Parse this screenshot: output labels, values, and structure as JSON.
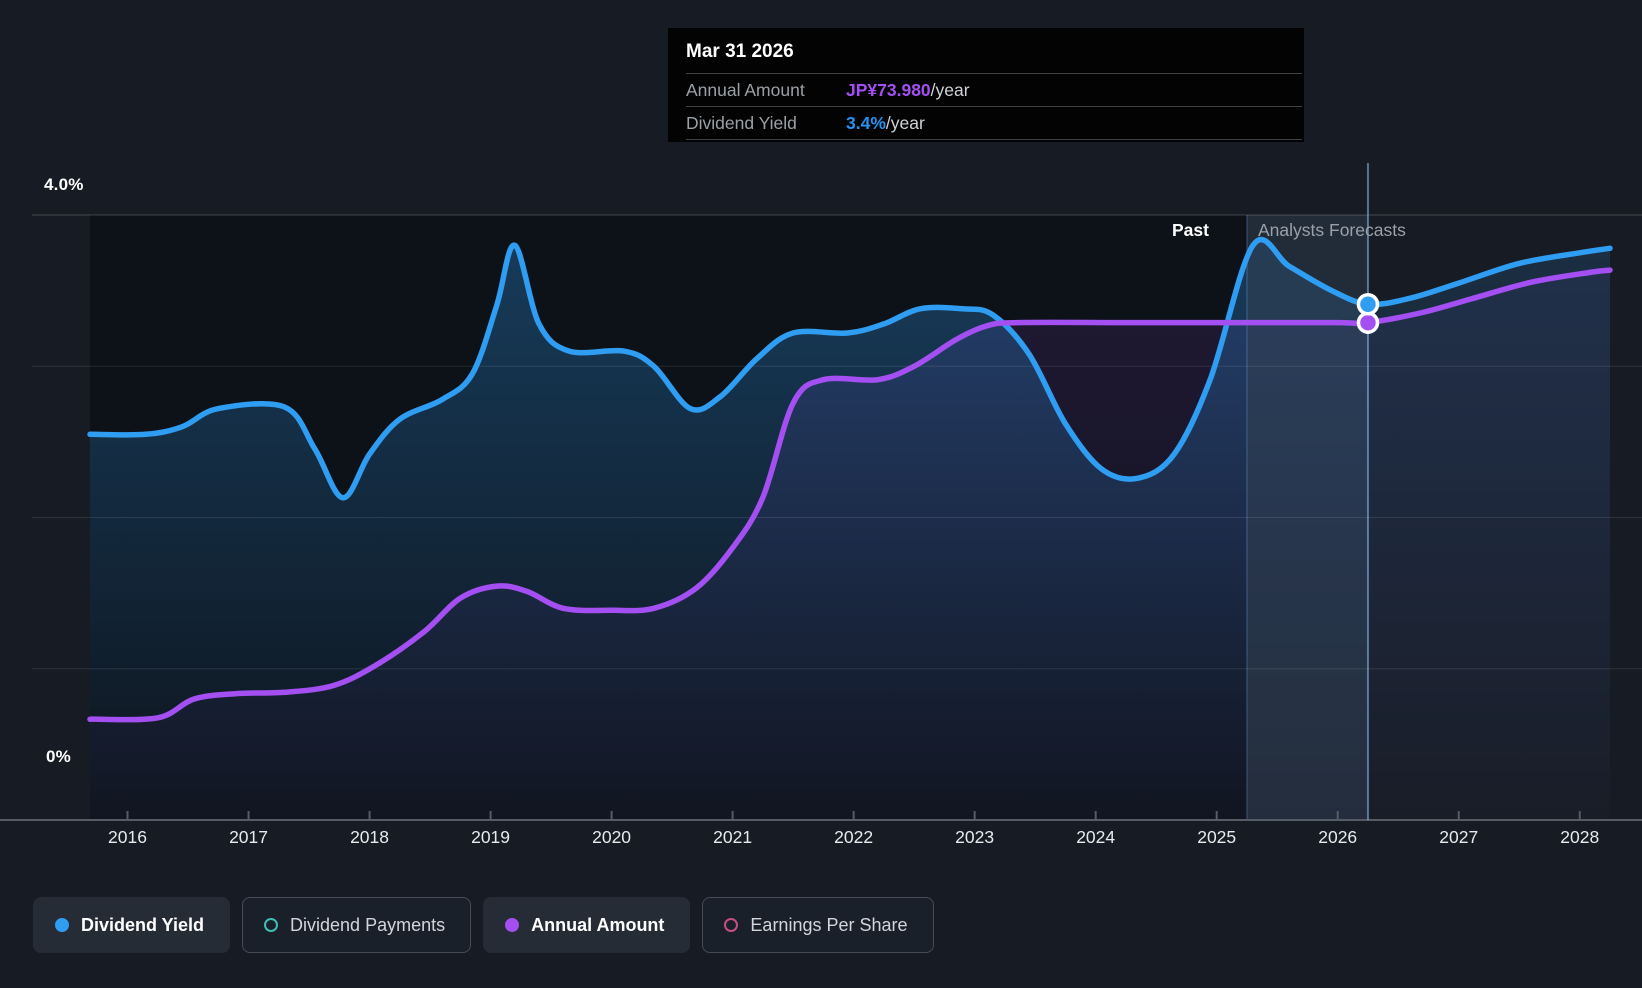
{
  "tooltip": {
    "date": "Mar 31 2026",
    "rows": [
      {
        "label": "Annual Amount",
        "value": "JP¥73.980",
        "suffix": "/year",
        "color": "#a44ff2"
      },
      {
        "label": "Dividend Yield",
        "value": "3.4%",
        "suffix": "/year",
        "color": "#2493f2"
      }
    ]
  },
  "annotations": {
    "past": "Past",
    "forecast": "Analysts Forecasts"
  },
  "y_axis": {
    "top_label": "4.0%",
    "bottom_label": "0%"
  },
  "legend": {
    "items": [
      {
        "label": "Dividend Yield",
        "color": "#2e9df2",
        "active": true,
        "marker": "filled"
      },
      {
        "label": "Dividend Payments",
        "color": "#3fbfb4",
        "active": false,
        "marker": "ring"
      },
      {
        "label": "Annual Amount",
        "color": "#a44ff2",
        "active": true,
        "marker": "filled"
      },
      {
        "label": "Earnings Per Share",
        "color": "#c64d86",
        "active": false,
        "marker": "ring"
      }
    ]
  },
  "chart_data": {
    "type": "line",
    "title": "Dividend yield history and analyst forecasts",
    "x_axis": {
      "min": 2015.69,
      "max": 2028.25,
      "ticks": [
        2016,
        2017,
        2018,
        2019,
        2020,
        2021,
        2022,
        2023,
        2024,
        2025,
        2026,
        2027,
        2028
      ]
    },
    "y_axis": {
      "min": 0,
      "max": 4,
      "unit": "%",
      "gridline_values": [
        0,
        1,
        2,
        3,
        4
      ],
      "grid": true
    },
    "past_forecast_boundary": 2025.25,
    "highlight_band": {
      "from": 2025.25,
      "to": 2026.25
    },
    "hover_x": 2026.25,
    "series": [
      {
        "name": "Dividend Yield",
        "color": "#2e9df2",
        "unit": "%",
        "y_max": 4,
        "points": [
          [
            2015.69,
            2.55
          ],
          [
            2016.15,
            2.55
          ],
          [
            2016.45,
            2.6
          ],
          [
            2016.75,
            2.72
          ],
          [
            2017.3,
            2.73
          ],
          [
            2017.55,
            2.45
          ],
          [
            2017.78,
            2.13
          ],
          [
            2018.0,
            2.42
          ],
          [
            2018.25,
            2.65
          ],
          [
            2018.6,
            2.78
          ],
          [
            2018.85,
            2.95
          ],
          [
            2019.05,
            3.4
          ],
          [
            2019.2,
            3.8
          ],
          [
            2019.4,
            3.28
          ],
          [
            2019.65,
            3.1
          ],
          [
            2020.1,
            3.1
          ],
          [
            2020.35,
            3.0
          ],
          [
            2020.65,
            2.72
          ],
          [
            2020.9,
            2.8
          ],
          [
            2021.2,
            3.05
          ],
          [
            2021.5,
            3.22
          ],
          [
            2021.95,
            3.22
          ],
          [
            2022.25,
            3.28
          ],
          [
            2022.55,
            3.38
          ],
          [
            2022.9,
            3.38
          ],
          [
            2023.15,
            3.34
          ],
          [
            2023.45,
            3.08
          ],
          [
            2023.75,
            2.62
          ],
          [
            2024.05,
            2.32
          ],
          [
            2024.35,
            2.26
          ],
          [
            2024.65,
            2.42
          ],
          [
            2024.95,
            2.92
          ],
          [
            2025.3,
            3.8
          ],
          [
            2025.6,
            3.66
          ],
          [
            2025.95,
            3.5
          ],
          [
            2026.25,
            3.41
          ],
          [
            2026.6,
            3.45
          ],
          [
            2027.0,
            3.55
          ],
          [
            2027.5,
            3.68
          ],
          [
            2028.0,
            3.75
          ],
          [
            2028.25,
            3.78
          ]
        ]
      },
      {
        "name": "Annual Amount",
        "color": "#a44ff2",
        "unit": "JP¥/year",
        "y_max": 90,
        "points": [
          [
            2015.69,
            15.0
          ],
          [
            2016.25,
            15.2
          ],
          [
            2016.55,
            18.0
          ],
          [
            2016.9,
            18.8
          ],
          [
            2017.3,
            19.0
          ],
          [
            2017.7,
            20.0
          ],
          [
            2018.05,
            23.0
          ],
          [
            2018.45,
            28.0
          ],
          [
            2018.75,
            33.0
          ],
          [
            2019.05,
            34.8
          ],
          [
            2019.3,
            34.0
          ],
          [
            2019.6,
            31.5
          ],
          [
            2020.0,
            31.2
          ],
          [
            2020.35,
            31.5
          ],
          [
            2020.7,
            34.5
          ],
          [
            2021.0,
            40.5
          ],
          [
            2021.25,
            48.0
          ],
          [
            2021.5,
            62.0
          ],
          [
            2021.75,
            65.5
          ],
          [
            2022.2,
            65.5
          ],
          [
            2022.5,
            67.5
          ],
          [
            2022.85,
            71.5
          ],
          [
            2023.1,
            73.5
          ],
          [
            2023.35,
            74.0
          ],
          [
            2024.3,
            74.0
          ],
          [
            2025.3,
            74.0
          ],
          [
            2026.0,
            74.0
          ],
          [
            2026.25,
            73.98
          ],
          [
            2026.7,
            75.5
          ],
          [
            2027.1,
            77.5
          ],
          [
            2027.6,
            80.0
          ],
          [
            2028.1,
            81.5
          ],
          [
            2028.25,
            81.8
          ]
        ]
      }
    ],
    "markers": [
      {
        "series": 0,
        "x": 2026.25,
        "y": 3.41,
        "label": "Dividend Yield 3.4%/year"
      },
      {
        "series": 1,
        "x": 2026.25,
        "y": 73.98,
        "label": "Annual Amount JP¥73.980/year"
      }
    ],
    "legend_position": "bottom"
  }
}
